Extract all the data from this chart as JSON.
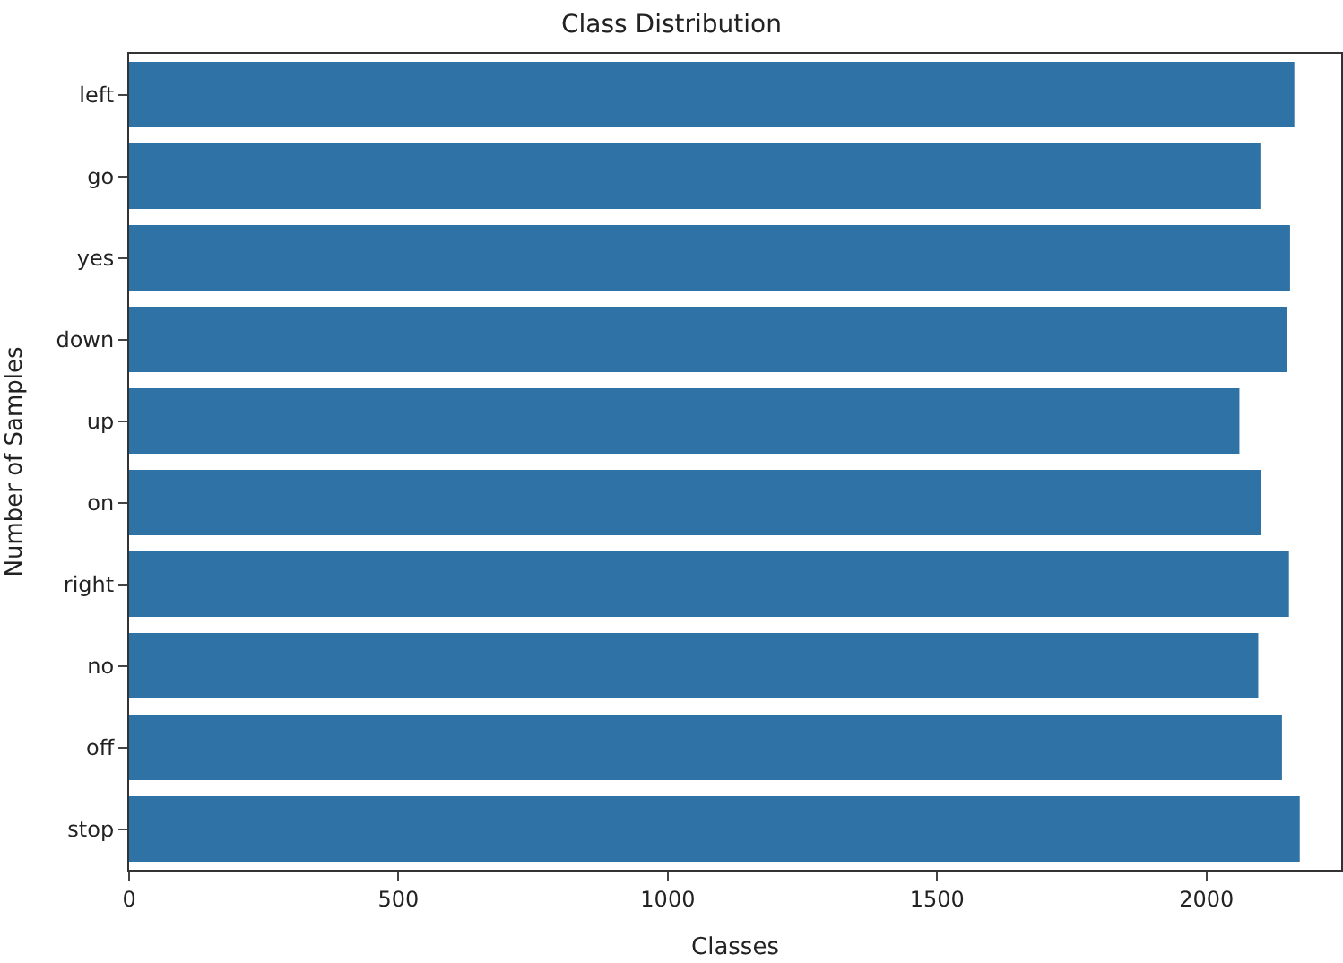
{
  "chart_data": {
    "type": "bar",
    "orientation": "horizontal",
    "title": "Class Distribution",
    "xlabel": "Classes",
    "ylabel": "Number of Samples",
    "categories": [
      "left",
      "go",
      "yes",
      "down",
      "up",
      "on",
      "right",
      "no",
      "off",
      "stop"
    ],
    "values": [
      2163,
      2100,
      2155,
      2150,
      2061,
      2101,
      2153,
      2096,
      2140,
      2173
    ],
    "color": "#2f72a6",
    "xlim": [
      0,
      2250
    ],
    "xticks": [
      0,
      500,
      1000,
      1500,
      2000
    ]
  }
}
